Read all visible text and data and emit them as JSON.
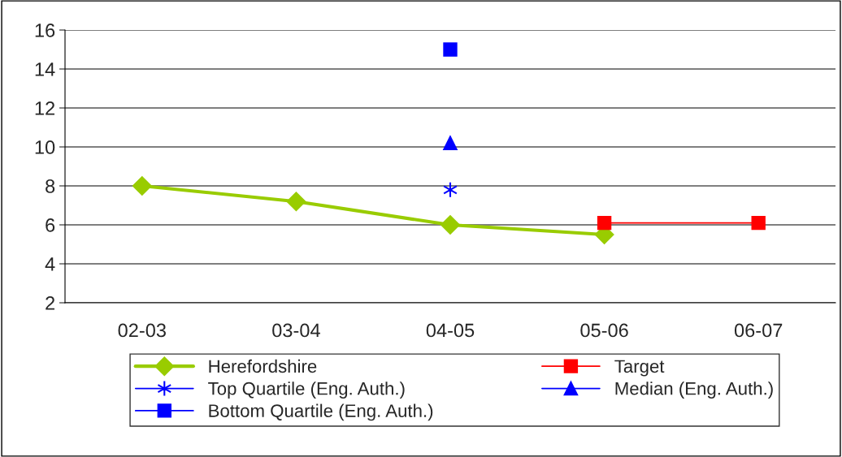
{
  "chart_data": {
    "type": "line",
    "categories": [
      "02-03",
      "03-04",
      "04-05",
      "05-06",
      "06-07"
    ],
    "series": [
      {
        "name": "Herefordshire",
        "color": "#99cc00",
        "marker": "diamond",
        "values": [
          8,
          7.2,
          6,
          5.5,
          null
        ]
      },
      {
        "name": "Target",
        "color": "#ff0000",
        "marker": "square",
        "values": [
          null,
          null,
          null,
          6.1,
          6.1
        ]
      },
      {
        "name": "Top Quartile (Eng. Auth.)",
        "color": "#0000ff",
        "marker": "cross",
        "values": [
          null,
          null,
          7.8,
          null,
          null
        ]
      },
      {
        "name": "Median (Eng. Auth.)",
        "color": "#0000ff",
        "marker": "triangle",
        "values": [
          null,
          null,
          10.2,
          null,
          null
        ]
      },
      {
        "name": "Bottom Quartile (Eng. Auth.)",
        "color": "#0000ff",
        "marker": "square",
        "values": [
          null,
          null,
          15,
          null,
          null
        ]
      }
    ],
    "ylim": [
      2,
      16
    ],
    "yticks": [
      2,
      4,
      6,
      8,
      10,
      12,
      14,
      16
    ],
    "grid": "y",
    "legend": "bottom"
  }
}
